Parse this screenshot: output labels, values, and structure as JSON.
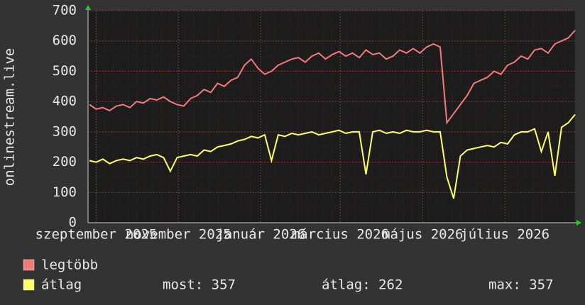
{
  "chart_data": {
    "type": "line",
    "y_label": "onlinestream.live",
    "x": [
      -5,
      0,
      5,
      10,
      15,
      20,
      25,
      30,
      35,
      40,
      45,
      50,
      55,
      60,
      65,
      70,
      75,
      80,
      85,
      90,
      95,
      100,
      105,
      110,
      115,
      120,
      125,
      130,
      135,
      140,
      145,
      150,
      155,
      160,
      165,
      170,
      175,
      180,
      185,
      190,
      195,
      200,
      205,
      210,
      215,
      220,
      225,
      230,
      235,
      240,
      245,
      250,
      255,
      260,
      265,
      270,
      275,
      280,
      285,
      290,
      295,
      300,
      305,
      310,
      315,
      320,
      325,
      330,
      335,
      340,
      345,
      350,
      355
    ],
    "xlim": [
      -6,
      355
    ],
    "xticks": [
      {
        "value": 0,
        "label": "szeptember 2025"
      },
      {
        "value": 61,
        "label": "november 2025"
      },
      {
        "value": 122,
        "label": "január 2026"
      },
      {
        "value": 181,
        "label": "március 2026"
      },
      {
        "value": 242,
        "label": "május 2026"
      },
      {
        "value": 303,
        "label": "július 2026"
      }
    ],
    "ylim": [
      0,
      700
    ],
    "yticks": [
      0,
      100,
      200,
      300,
      400,
      500,
      600,
      700
    ],
    "grid": true,
    "series": [
      {
        "name": "legtöbb",
        "color": "#f47a7a",
        "values": [
          390,
          375,
          380,
          370,
          385,
          390,
          380,
          400,
          395,
          410,
          405,
          415,
          400,
          390,
          385,
          410,
          420,
          440,
          430,
          460,
          450,
          470,
          480,
          520,
          540,
          510,
          490,
          500,
          520,
          530,
          540,
          545,
          530,
          550,
          560,
          540,
          555,
          565,
          550,
          560,
          545,
          570,
          555,
          560,
          540,
          550,
          570,
          560,
          575,
          560,
          580,
          590,
          580,
          330,
          360,
          390,
          420,
          460,
          470,
          480,
          500,
          490,
          520,
          530,
          550,
          540,
          570,
          575,
          560,
          590,
          600,
          610,
          635
        ]
      },
      {
        "name": "átlag",
        "color": "#ffff66",
        "values": [
          205,
          200,
          210,
          195,
          205,
          210,
          205,
          215,
          210,
          220,
          225,
          215,
          170,
          215,
          220,
          225,
          220,
          240,
          235,
          250,
          255,
          260,
          270,
          275,
          285,
          280,
          290,
          205,
          290,
          285,
          295,
          290,
          295,
          300,
          290,
          295,
          300,
          305,
          295,
          300,
          300,
          160,
          300,
          305,
          295,
          300,
          295,
          305,
          300,
          300,
          305,
          300,
          300,
          150,
          80,
          220,
          240,
          245,
          250,
          255,
          250,
          265,
          260,
          290,
          300,
          300,
          310,
          235,
          300,
          155,
          315,
          330,
          357
        ]
      }
    ],
    "legend_stats": [
      "most: 357",
      "átlag: 262",
      "max: 357"
    ]
  }
}
